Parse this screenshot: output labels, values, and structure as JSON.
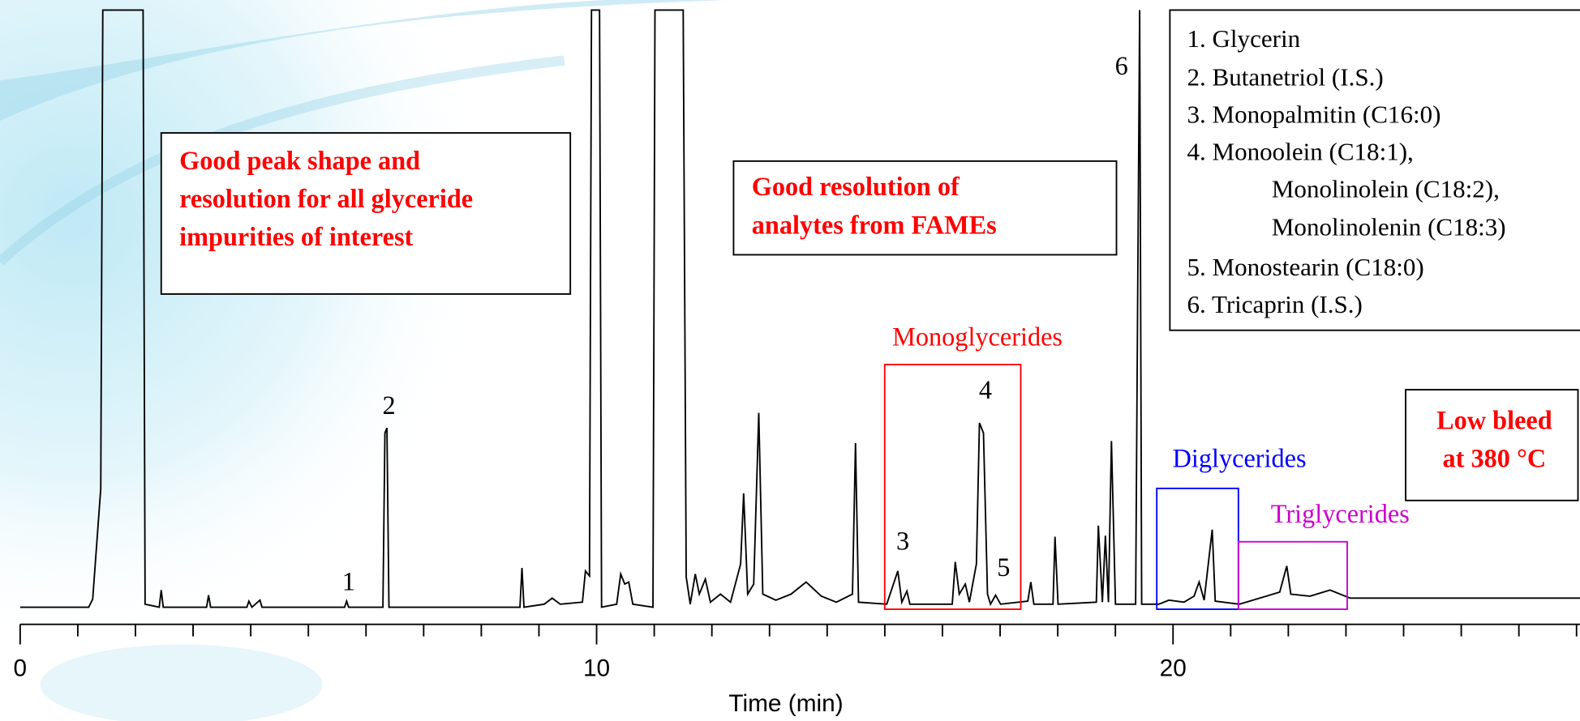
{
  "chart_data": {
    "type": "chromatogram",
    "x_label": "Time (min)",
    "xlim": [
      0,
      27.06
    ],
    "xticks": [
      0,
      10,
      20
    ],
    "x_minor_ticks": [
      1,
      2,
      3,
      4,
      5,
      6,
      7,
      8,
      9,
      11,
      12,
      13,
      14,
      15,
      16,
      17,
      18,
      19,
      21,
      22,
      23,
      24,
      25,
      26,
      27
    ],
    "trace_color": "#000000",
    "peak_labels": [
      "1",
      "2",
      "3",
      "4",
      "5",
      "6"
    ],
    "legend": [
      [
        "1. Glycerin"
      ],
      [
        "2. Butanetriol (I.S.)"
      ],
      [
        "3. Monopalmitin (C16:0)"
      ],
      [
        "4. Monoolein (C18:1),",
        "Monolinolein (C18:2),",
        "Monolinolenin (C18:3)"
      ],
      [
        "5. Monostearin (C18:0)"
      ],
      [
        "6. Tricaprin (I.S.)"
      ]
    ],
    "regions": [
      {
        "label": "Monoglycerides",
        "color": "#ff0000"
      },
      {
        "label": "Diglycerides",
        "color": "#0000ff"
      },
      {
        "label": "Triglycerides",
        "color": "#cc00cc"
      }
    ],
    "annotations": [
      [
        "Good peak shape and",
        "resolution for all glyceride",
        "impurities of interest"
      ],
      [
        "Good resolution of",
        "analytes from FAMEs"
      ],
      [
        "Low bleed",
        "at 380 °C"
      ]
    ],
    "annotation_color": "#ff0000"
  }
}
